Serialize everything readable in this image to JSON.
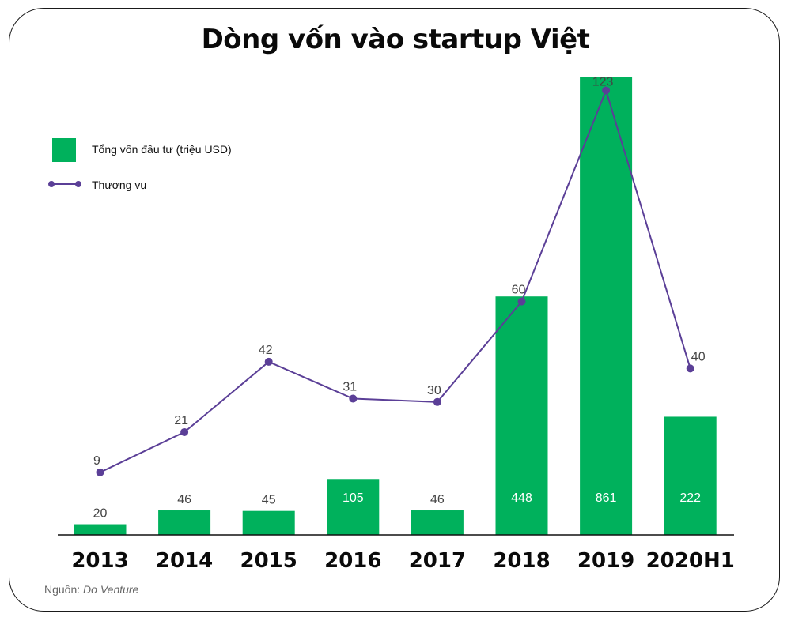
{
  "title": "Dòng vốn vào startup Việt",
  "legend": {
    "bar_label": "Tổng vốn đầu tư (triệu USD)",
    "line_label": "Thương vụ"
  },
  "source": {
    "prefix": "Nguồn:",
    "name": "Do Venture"
  },
  "colors": {
    "bar": "#00b15c",
    "line": "#5b3f97",
    "frame": "#1a1a1a"
  },
  "chart_data": {
    "type": "bar",
    "title": "Dòng vốn vào startup Việt",
    "categories": [
      "2013",
      "2014",
      "2015",
      "2016",
      "2017",
      "2018",
      "2019",
      "2020H1"
    ],
    "series": [
      {
        "name": "Tổng vốn đầu tư (triệu USD)",
        "type": "bar",
        "values": [
          20,
          46,
          45,
          105,
          46,
          448,
          861,
          222
        ]
      },
      {
        "name": "Thương vụ",
        "type": "line",
        "values": [
          9,
          21,
          42,
          31,
          30,
          60,
          123,
          40
        ]
      }
    ],
    "data_labels": true,
    "grid": false,
    "legend_position": "top-left"
  }
}
